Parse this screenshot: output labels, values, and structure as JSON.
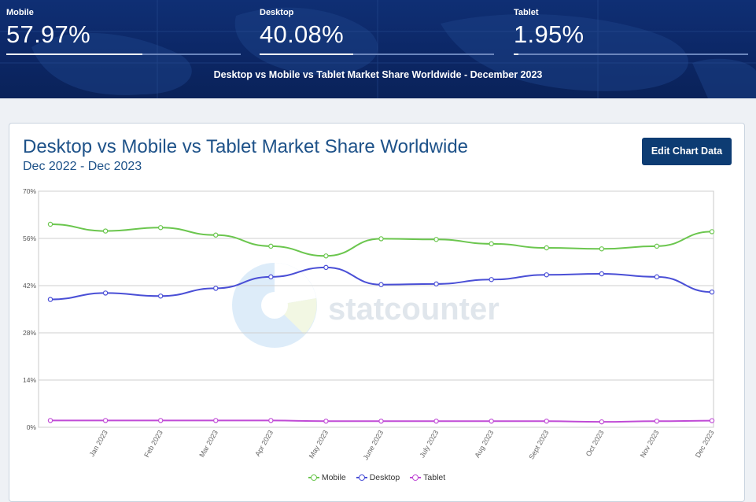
{
  "banner": {
    "stats": [
      {
        "label": "Mobile",
        "value": "57.97%",
        "share": 0.5797
      },
      {
        "label": "Desktop",
        "value": "40.08%",
        "share": 0.4008
      },
      {
        "label": "Tablet",
        "value": "1.95%",
        "share": 0.0195
      }
    ],
    "title": "Desktop vs Mobile vs Tablet Market Share Worldwide - December 2023"
  },
  "card": {
    "title": "Desktop vs Mobile vs Tablet Market Share Worldwide",
    "subtitle": "Dec 2022 - Dec 2023",
    "edit_button": "Edit Chart Data",
    "watermark": "statcounter"
  },
  "chart_data": {
    "type": "line",
    "title": "Desktop vs Mobile vs Tablet Market Share Worldwide",
    "subtitle": "Dec 2022 - Dec 2023",
    "xlabel": "",
    "ylabel": "",
    "ylim": [
      0,
      70
    ],
    "yticks": [
      0,
      14,
      28,
      42,
      56,
      70
    ],
    "ytick_labels": [
      "0%",
      "14%",
      "28%",
      "42%",
      "56%",
      "70%"
    ],
    "grid": true,
    "legend": "bottom",
    "categories": [
      "Dec 2022",
      "Jan 2023",
      "Feb 2023",
      "Mar 2023",
      "Apr 2023",
      "May 2023",
      "June 2023",
      "July 2023",
      "Aug 2023",
      "Sept 2023",
      "Oct 2023",
      "Nov 2023",
      "Dec 2023"
    ],
    "xtick_labels": [
      "",
      "Jan 2023",
      "Feb 2023",
      "Mar 2023",
      "Apr 2023",
      "May 2023",
      "June 2023",
      "July 2023",
      "Aug 2023",
      "Sept 2023",
      "Oct 2023",
      "Nov 2023",
      "Dec 2023"
    ],
    "series": [
      {
        "name": "Mobile",
        "color": "#6bc64e",
        "values": [
          60.2,
          58.2,
          59.2,
          57.0,
          53.7,
          50.8,
          55.9,
          55.7,
          54.4,
          53.2,
          52.9,
          53.7,
          58.0
        ]
      },
      {
        "name": "Desktop",
        "color": "#4a4fd6",
        "values": [
          37.9,
          39.8,
          38.9,
          41.2,
          44.6,
          47.4,
          42.3,
          42.5,
          43.8,
          45.2,
          45.5,
          44.6,
          40.1
        ]
      },
      {
        "name": "Tablet",
        "color": "#c04bd6",
        "values": [
          2.0,
          2.0,
          2.0,
          2.0,
          2.0,
          1.8,
          1.8,
          1.8,
          1.8,
          1.8,
          1.6,
          1.8,
          1.95
        ]
      }
    ]
  }
}
